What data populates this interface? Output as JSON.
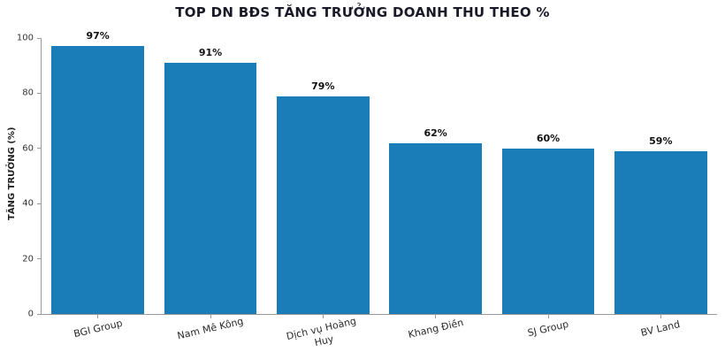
{
  "chart_data": {
    "type": "bar",
    "title": "TOP DN BĐS TĂNG TRƯỞNG DOANH THU THEO %",
    "xlabel": "",
    "ylabel": "TĂNG TRƯỞNG (%)",
    "categories": [
      "BGI Group",
      "Nam Mê Kông",
      "Dịch vụ Hoàng\nHuy",
      "Khang Điền",
      "SJ Group",
      "BV Land"
    ],
    "values": [
      97,
      91,
      79,
      62,
      60,
      59
    ],
    "value_labels": [
      "97%",
      "91%",
      "79%",
      "62%",
      "60%",
      "59%"
    ],
    "ylim": [
      0,
      100
    ],
    "yticks": [
      0,
      20,
      40,
      60,
      80,
      100
    ],
    "bar_color": "#1a7db8",
    "grid": false,
    "legend": "none",
    "background": "#ffffff",
    "xtick_rotation_deg": 13
  }
}
